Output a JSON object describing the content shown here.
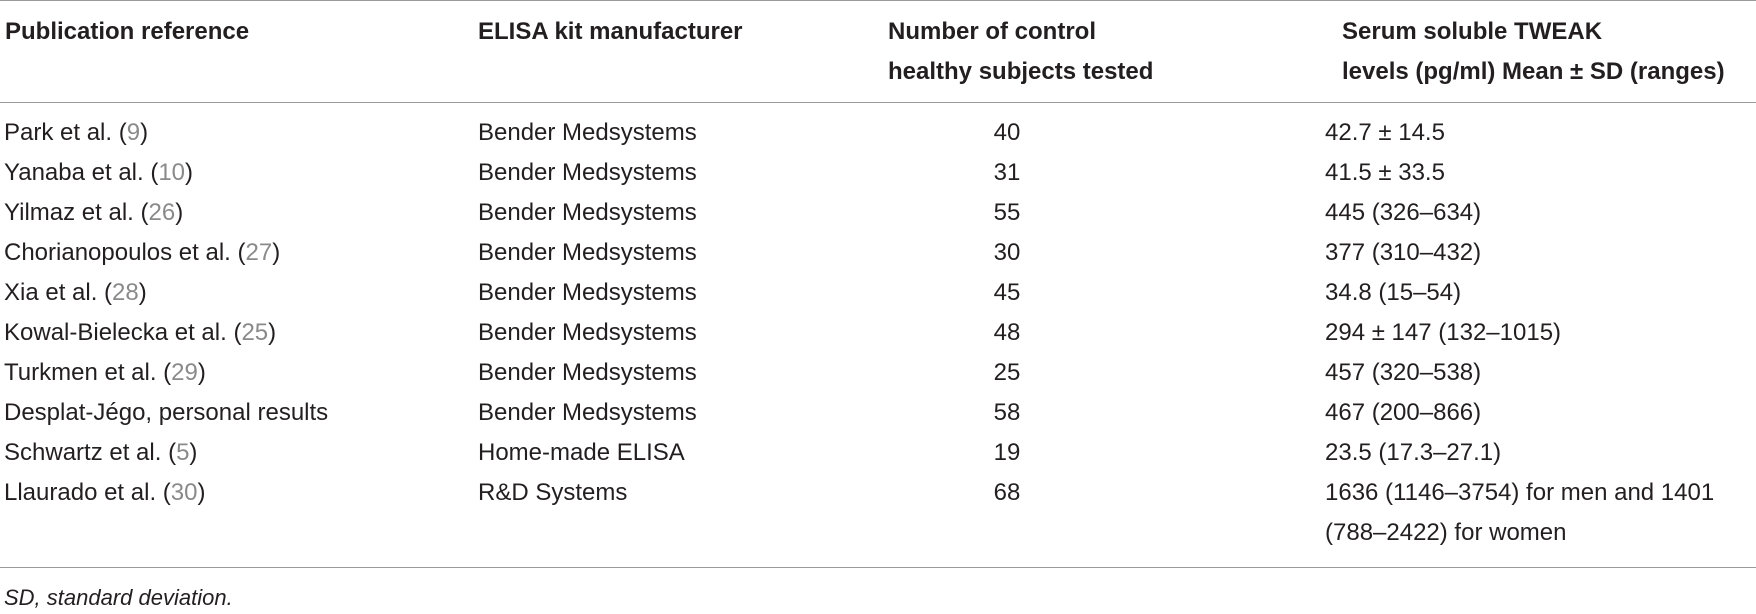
{
  "table": {
    "headers": {
      "publication": "Publication reference",
      "manufacturer": "ELISA kit manufacturer",
      "subjects_line1": "Number of control",
      "subjects_line2": "healthy subjects tested",
      "levels_line1": "Serum soluble TWEAK",
      "levels_line2": "levels (pg/ml) Mean ± SD (ranges)"
    },
    "rows": [
      {
        "author": "Park et al. (",
        "ref": "9",
        "close": ")",
        "manufacturer": "Bender Medsystems",
        "subjects": "40",
        "levels": "42.7 ± 14.5"
      },
      {
        "author": "Yanaba et al. (",
        "ref": "10",
        "close": ")",
        "manufacturer": "Bender Medsystems",
        "subjects": "31",
        "levels": "41.5 ± 33.5"
      },
      {
        "author": "Yilmaz et al. (",
        "ref": "26",
        "close": ")",
        "manufacturer": "Bender Medsystems",
        "subjects": "55",
        "levels": "445 (326–634)"
      },
      {
        "author": "Chorianopoulos et al. (",
        "ref": "27",
        "close": ")",
        "manufacturer": "Bender Medsystems",
        "subjects": "30",
        "levels": "377 (310–432)"
      },
      {
        "author": "Xia et al. (",
        "ref": "28",
        "close": ")",
        "manufacturer": "Bender Medsystems",
        "subjects": "45",
        "levels": "34.8 (15–54)"
      },
      {
        "author": "Kowal-Bielecka et al. (",
        "ref": "25",
        "close": ")",
        "manufacturer": "Bender Medsystems",
        "subjects": "48",
        "levels": "294 ± 147 (132–1015)"
      },
      {
        "author": "Turkmen et al. (",
        "ref": "29",
        "close": ")",
        "manufacturer": "Bender Medsystems",
        "subjects": "25",
        "levels": "457 (320–538)"
      },
      {
        "author": "Desplat-Jégo, personal results",
        "ref": "",
        "close": "",
        "manufacturer": "Bender Medsystems",
        "subjects": "58",
        "levels": "467 (200–866)"
      },
      {
        "author": "Schwartz et al. (",
        "ref": "5",
        "close": ")",
        "manufacturer": "Home-made ELISA",
        "subjects": "19",
        "levels": "23.5 (17.3–27.1)"
      },
      {
        "author": "Llaurado et al. (",
        "ref": "30",
        "close": ")",
        "manufacturer": "R&D Systems",
        "subjects": "68",
        "levels": "1636 (1146–3754) for men and 1401 (788–2422) for women"
      }
    ]
  },
  "footnote": "SD, standard deviation.",
  "colors": {
    "text": "#231f20",
    "reference_link": "#8a8a8a",
    "rule": "#9a9a9a"
  }
}
